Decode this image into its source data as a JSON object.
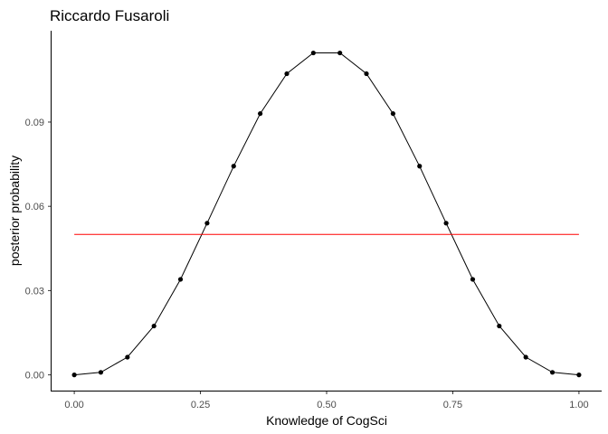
{
  "chart_data": {
    "type": "line",
    "title": "Riccardo Fusaroli",
    "xlabel": "Knowledge of CogSci",
    "ylabel": "posterior probability",
    "xlim": [
      -0.045,
      1.045
    ],
    "ylim": [
      -0.0056,
      0.1225
    ],
    "x_ticks": [
      0.0,
      0.25,
      0.5,
      0.75,
      1.0
    ],
    "x_tick_labels": [
      "0.00",
      "0.25",
      "0.50",
      "0.75",
      "1.00"
    ],
    "y_ticks": [
      0.0,
      0.03,
      0.06,
      0.09
    ],
    "y_tick_labels": [
      "0.00",
      "0.03",
      "0.06",
      "0.09"
    ],
    "grid": false,
    "legend": "none",
    "series": [
      {
        "color": "#000000",
        "markers": true,
        "x": [
          0.0,
          0.0526,
          0.1053,
          0.1579,
          0.2105,
          0.2632,
          0.3158,
          0.3684,
          0.4211,
          0.4737,
          0.5263,
          0.5789,
          0.6316,
          0.6842,
          0.7368,
          0.7895,
          0.8421,
          0.8947,
          0.9474,
          1.0
        ],
        "y": [
          0.0,
          0.0009,
          0.0063,
          0.0174,
          0.034,
          0.054,
          0.0743,
          0.093,
          0.1072,
          0.1146,
          0.1146,
          0.1072,
          0.093,
          0.0743,
          0.054,
          0.034,
          0.0174,
          0.0063,
          0.0009,
          0.0
        ]
      }
    ],
    "reference_line": {
      "y": 0.05,
      "x_range": [
        0.0,
        1.0
      ],
      "color": "#ff0000"
    }
  }
}
